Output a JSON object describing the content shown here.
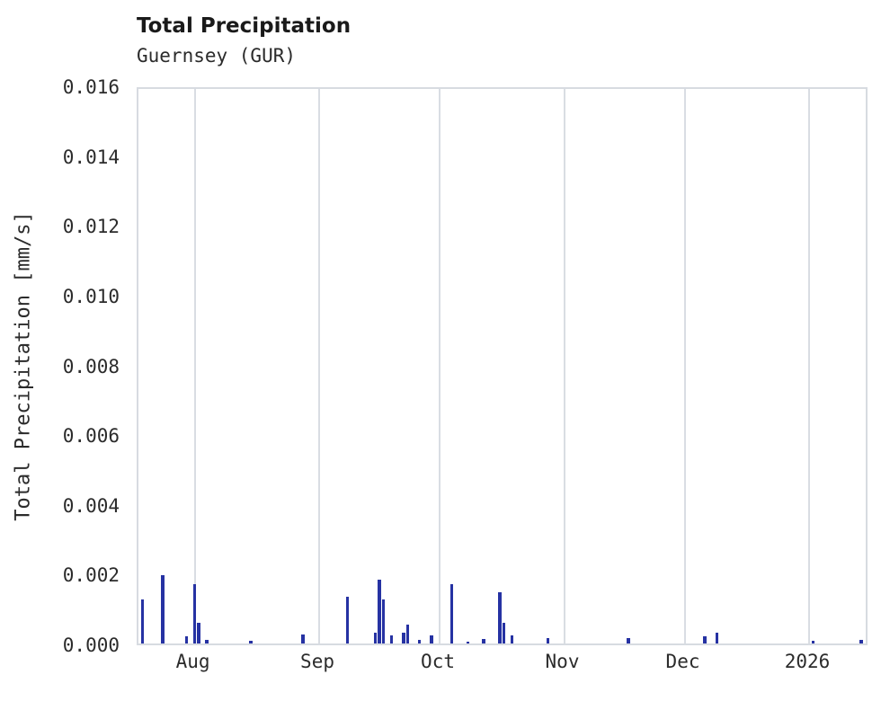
{
  "header": {
    "title": "Total Precipitation",
    "subtitle": "Guernsey (GUR)"
  },
  "chart_data": {
    "type": "bar",
    "title": "Total Precipitation",
    "subtitle": "Guernsey (GUR)",
    "xlabel": "",
    "ylabel": "Total Precipitation [mm/s]",
    "ylim": [
      0,
      0.016
    ],
    "y_ticks": [
      0.0,
      0.002,
      0.004,
      0.006,
      0.008,
      0.01,
      0.012,
      0.014,
      0.016
    ],
    "x_domain": [
      "2025-07-18",
      "2026-01-16"
    ],
    "x_ticks": [
      {
        "date": "2025-08-01",
        "label": "Aug"
      },
      {
        "date": "2025-09-01",
        "label": "Sep"
      },
      {
        "date": "2025-10-01",
        "label": "Oct"
      },
      {
        "date": "2025-11-01",
        "label": "Nov"
      },
      {
        "date": "2025-12-01",
        "label": "Dec"
      },
      {
        "date": "2026-01-01",
        "label": "2026"
      }
    ],
    "grid": "vertical-only",
    "legend": "none",
    "bar_color": "#2632a3",
    "grid_color": "#d9dde3",
    "bars": [
      {
        "date": "2025-07-19",
        "value": 0.00125
      },
      {
        "date": "2025-07-24",
        "value": 0.00197
      },
      {
        "date": "2025-07-30",
        "value": 0.0002
      },
      {
        "date": "2025-08-01",
        "value": 0.0017
      },
      {
        "date": "2025-08-02",
        "value": 0.0006
      },
      {
        "date": "2025-08-04",
        "value": 0.0001
      },
      {
        "date": "2025-08-15",
        "value": 8e-05
      },
      {
        "date": "2025-08-28",
        "value": 0.00025
      },
      {
        "date": "2025-09-08",
        "value": 0.00135
      },
      {
        "date": "2025-09-15",
        "value": 0.0003
      },
      {
        "date": "2025-09-16",
        "value": 0.00182
      },
      {
        "date": "2025-09-17",
        "value": 0.00125
      },
      {
        "date": "2025-09-19",
        "value": 0.00022
      },
      {
        "date": "2025-09-22",
        "value": 0.0003
      },
      {
        "date": "2025-09-23",
        "value": 0.00055
      },
      {
        "date": "2025-09-26",
        "value": 0.0001
      },
      {
        "date": "2025-09-29",
        "value": 0.00022
      },
      {
        "date": "2025-10-04",
        "value": 0.0017
      },
      {
        "date": "2025-10-08",
        "value": 5e-05
      },
      {
        "date": "2025-10-12",
        "value": 0.00012
      },
      {
        "date": "2025-10-16",
        "value": 0.00148
      },
      {
        "date": "2025-10-17",
        "value": 0.0006
      },
      {
        "date": "2025-10-19",
        "value": 0.00022
      },
      {
        "date": "2025-10-28",
        "value": 0.00015
      },
      {
        "date": "2025-11-17",
        "value": 0.00015
      },
      {
        "date": "2025-12-06",
        "value": 0.0002
      },
      {
        "date": "2025-12-09",
        "value": 0.0003
      },
      {
        "date": "2026-01-02",
        "value": 8e-05
      },
      {
        "date": "2026-01-14",
        "value": 0.0001
      }
    ]
  }
}
